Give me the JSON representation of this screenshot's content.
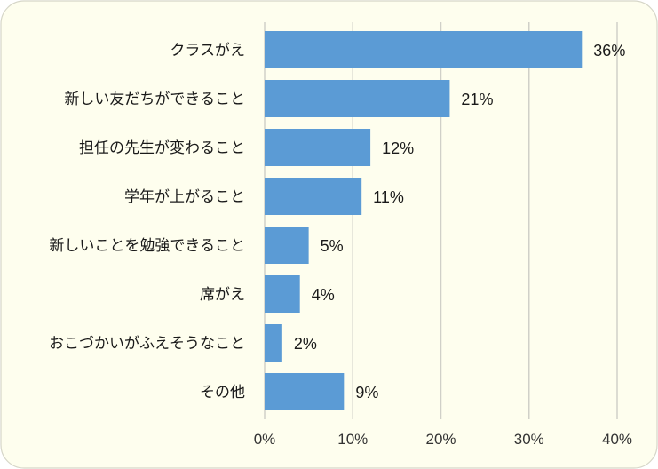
{
  "chart_data": {
    "type": "bar",
    "orientation": "horizontal",
    "categories": [
      "クラスがえ",
      "新しい友だちができること",
      "担任の先生が変わること",
      "学年が上がること",
      "新しいことを勉強できること",
      "席がえ",
      "おこづかいがふえそうなこと",
      "その他"
    ],
    "values": [
      36,
      21,
      12,
      11,
      5,
      4,
      2,
      9
    ],
    "value_labels": [
      "36%",
      "21%",
      "12%",
      "11%",
      "5%",
      "4%",
      "2%",
      "9%"
    ],
    "x_ticks": [
      0,
      10,
      20,
      30,
      40
    ],
    "x_tick_labels": [
      "0%",
      "10%",
      "20%",
      "30%",
      "40%"
    ],
    "xlim": [
      0,
      40
    ],
    "grid": true,
    "legend": "none",
    "colors": {
      "bar": "#5b9bd5",
      "background": "#fefeee",
      "grid": "#d0d0c8"
    }
  }
}
